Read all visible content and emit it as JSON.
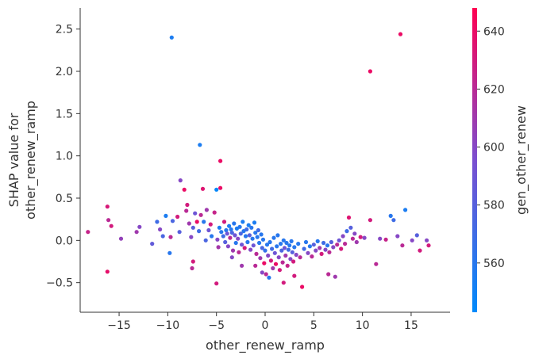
{
  "chart_data": {
    "type": "scatter",
    "xlabel": "other_renew_ramp",
    "ylabel_lines": [
      "SHAP value for",
      "other_renew_ramp"
    ],
    "colorbar_label": "gen_other_renew",
    "xlim": [
      -19,
      19
    ],
    "ylim": [
      -0.85,
      2.75
    ],
    "x_ticks": [
      -15,
      -10,
      -5,
      0,
      5,
      10,
      15
    ],
    "x_tick_labels": [
      "−15",
      "−10",
      "−5",
      "0",
      "5",
      "10",
      "15"
    ],
    "y_ticks": [
      -0.5,
      0.0,
      0.5,
      1.0,
      1.5,
      2.0,
      2.5
    ],
    "y_tick_labels": [
      "−0.5",
      "0.0",
      "0.5",
      "1.0",
      "1.5",
      "2.0",
      "2.5"
    ],
    "colorbar_range": [
      543,
      648
    ],
    "colorbar_ticks": [
      560,
      580,
      600,
      620,
      640
    ],
    "colorbar_tick_labels": [
      "560",
      "580",
      "600",
      "620",
      "640"
    ],
    "colors": {
      "low": "#008afb",
      "mid": "#7b4fd0",
      "high": "#ff0052"
    },
    "grid": false,
    "points": [
      [
        -18.2,
        0.1,
        625
      ],
      [
        -16.2,
        0.4,
        632
      ],
      [
        -16.1,
        0.24,
        620
      ],
      [
        -15.8,
        0.17,
        630
      ],
      [
        -16.2,
        -0.37,
        638
      ],
      [
        -14.8,
        0.02,
        605
      ],
      [
        -13.2,
        0.1,
        610
      ],
      [
        -12.9,
        0.16,
        600
      ],
      [
        -11.6,
        -0.04,
        585
      ],
      [
        -11.1,
        0.22,
        570
      ],
      [
        -10.8,
        0.13,
        600
      ],
      [
        -10.5,
        0.05,
        575
      ],
      [
        -10.2,
        0.29,
        555
      ],
      [
        -9.8,
        -0.15,
        560
      ],
      [
        -9.7,
        0.04,
        620
      ],
      [
        -9.5,
        0.23,
        575
      ],
      [
        -9.0,
        0.28,
        630
      ],
      [
        -8.8,
        0.1,
        580
      ],
      [
        -8.7,
        0.71,
        600
      ],
      [
        -8.3,
        0.6,
        640
      ],
      [
        -8.1,
        0.35,
        620
      ],
      [
        -8.0,
        0.42,
        630
      ],
      [
        -7.8,
        0.2,
        610
      ],
      [
        -7.6,
        0.04,
        600
      ],
      [
        -7.4,
        0.15,
        580
      ],
      [
        -7.2,
        0.32,
        590
      ],
      [
        -7.0,
        0.22,
        640
      ],
      [
        -6.8,
        0.11,
        570
      ],
      [
        -6.6,
        0.3,
        620
      ],
      [
        -6.4,
        0.61,
        635
      ],
      [
        -6.3,
        0.22,
        560
      ],
      [
        -6.1,
        0.0,
        575
      ],
      [
        -6.0,
        0.36,
        610
      ],
      [
        -5.8,
        0.12,
        590
      ],
      [
        -5.6,
        0.19,
        630
      ],
      [
        -5.5,
        0.05,
        560
      ],
      [
        -5.2,
        0.33,
        625
      ],
      [
        -5.0,
        0.6,
        545
      ],
      [
        -4.9,
        0.01,
        600
      ],
      [
        -4.8,
        -0.08,
        612
      ],
      [
        -4.7,
        0.15,
        555
      ],
      [
        -4.6,
        0.62,
        640
      ],
      [
        -4.5,
        0.1,
        560
      ],
      [
        -4.3,
        0.05,
        570
      ],
      [
        -4.2,
        0.22,
        630
      ],
      [
        -4.1,
        -0.02,
        580
      ],
      [
        -4.0,
        0.12,
        560
      ],
      [
        -3.9,
        0.08,
        590
      ],
      [
        -3.8,
        -0.07,
        600
      ],
      [
        -3.7,
        0.17,
        555
      ],
      [
        -3.6,
        0.03,
        620
      ],
      [
        -3.5,
        0.13,
        560
      ],
      [
        -3.4,
        0.09,
        575
      ],
      [
        -3.3,
        -0.12,
        610
      ],
      [
        -3.2,
        0.2,
        560
      ],
      [
        -3.1,
        0.06,
        590
      ],
      [
        -3.0,
        -0.03,
        560
      ],
      [
        -2.9,
        0.14,
        555
      ],
      [
        -2.8,
        0.02,
        600
      ],
      [
        -2.7,
        -0.14,
        620
      ],
      [
        -2.6,
        0.16,
        560
      ],
      [
        -2.5,
        0.08,
        575
      ],
      [
        -2.4,
        -0.05,
        590
      ],
      [
        -2.3,
        0.22,
        555
      ],
      [
        -2.2,
        0.11,
        560
      ],
      [
        -2.1,
        -0.09,
        630
      ],
      [
        -2.0,
        0.05,
        560
      ],
      [
        -1.9,
        0.13,
        570
      ],
      [
        -1.8,
        -0.02,
        560
      ],
      [
        -1.7,
        0.18,
        555
      ],
      [
        -1.6,
        0.06,
        580
      ],
      [
        -1.5,
        -0.11,
        600
      ],
      [
        -1.4,
        0.15,
        560
      ],
      [
        -1.3,
        0.02,
        560
      ],
      [
        -1.2,
        -0.06,
        590
      ],
      [
        -1.1,
        0.21,
        555
      ],
      [
        -1.0,
        0.09,
        560
      ],
      [
        -0.9,
        -0.16,
        620
      ],
      [
        -0.8,
        0.04,
        560
      ],
      [
        -0.7,
        0.12,
        570
      ],
      [
        -0.6,
        -0.03,
        560
      ],
      [
        -0.5,
        -0.21,
        610
      ],
      [
        -0.4,
        0.07,
        560
      ],
      [
        -0.3,
        -0.09,
        575
      ],
      [
        -0.2,
        0.01,
        560
      ],
      [
        -0.1,
        -0.27,
        640
      ],
      [
        0.0,
        -0.12,
        565
      ],
      [
        0.1,
        -0.4,
        620
      ],
      [
        0.2,
        -0.05,
        560
      ],
      [
        0.3,
        -0.18,
        600
      ],
      [
        0.4,
        -0.44,
        560
      ],
      [
        0.5,
        -0.02,
        560
      ],
      [
        0.6,
        -0.24,
        630
      ],
      [
        0.7,
        -0.1,
        570
      ],
      [
        0.8,
        -0.33,
        610
      ],
      [
        0.9,
        0.03,
        560
      ],
      [
        1.0,
        -0.15,
        590
      ],
      [
        1.1,
        -0.28,
        640
      ],
      [
        1.2,
        -0.07,
        560
      ],
      [
        1.3,
        0.06,
        560
      ],
      [
        1.4,
        -0.2,
        600
      ],
      [
        1.5,
        -0.35,
        630
      ],
      [
        1.6,
        -0.04,
        560
      ],
      [
        1.7,
        -0.12,
        575
      ],
      [
        1.8,
        -0.26,
        620
      ],
      [
        1.9,
        0.0,
        560
      ],
      [
        2.0,
        -0.09,
        590
      ],
      [
        2.1,
        -0.18,
        610
      ],
      [
        2.2,
        -0.03,
        560
      ],
      [
        2.3,
        -0.3,
        625
      ],
      [
        2.4,
        -0.11,
        570
      ],
      [
        2.5,
        -0.06,
        560
      ],
      [
        2.6,
        -0.22,
        600
      ],
      [
        2.7,
        -0.01,
        560
      ],
      [
        2.8,
        -0.14,
        580
      ],
      [
        2.9,
        -0.25,
        630
      ],
      [
        3.0,
        -0.08,
        560
      ],
      [
        3.2,
        -0.17,
        600
      ],
      [
        3.4,
        -0.04,
        560
      ],
      [
        3.6,
        -0.2,
        620
      ],
      [
        3.8,
        -0.55,
        640
      ],
      [
        4.0,
        -0.1,
        570
      ],
      [
        4.2,
        -0.02,
        560
      ],
      [
        4.4,
        -0.15,
        600
      ],
      [
        4.6,
        -0.07,
        560
      ],
      [
        4.8,
        -0.19,
        620
      ],
      [
        5.0,
        -0.05,
        580
      ],
      [
        5.2,
        -0.12,
        600
      ],
      [
        5.4,
        -0.01,
        560
      ],
      [
        5.6,
        -0.09,
        610
      ],
      [
        5.8,
        -0.16,
        630
      ],
      [
        6.0,
        -0.03,
        570
      ],
      [
        6.2,
        -0.11,
        600
      ],
      [
        6.4,
        -0.06,
        560
      ],
      [
        6.6,
        -0.14,
        620
      ],
      [
        6.8,
        -0.02,
        580
      ],
      [
        7.0,
        -0.08,
        600
      ],
      [
        7.2,
        -0.43,
        610
      ],
      [
        7.4,
        -0.05,
        620
      ],
      [
        7.6,
        0.0,
        590
      ],
      [
        7.8,
        -0.1,
        630
      ],
      [
        8.0,
        0.05,
        600
      ],
      [
        8.2,
        -0.04,
        620
      ],
      [
        8.4,
        0.11,
        570
      ],
      [
        8.6,
        0.27,
        635
      ],
      [
        8.8,
        0.15,
        580
      ],
      [
        9.0,
        0.02,
        620
      ],
      [
        9.2,
        0.08,
        600
      ],
      [
        9.4,
        -0.02,
        610
      ],
      [
        9.8,
        0.04,
        630
      ],
      [
        10.2,
        0.03,
        600
      ],
      [
        10.8,
        0.24,
        630
      ],
      [
        11.4,
        -0.28,
        620
      ],
      [
        11.8,
        0.02,
        600
      ],
      [
        12.4,
        0.01,
        625
      ],
      [
        12.9,
        0.29,
        560
      ],
      [
        13.2,
        0.24,
        570
      ],
      [
        13.6,
        0.05,
        600
      ],
      [
        14.1,
        -0.06,
        620
      ],
      [
        14.4,
        0.36,
        555
      ],
      [
        15.1,
        0.0,
        600
      ],
      [
        15.6,
        0.06,
        580
      ],
      [
        15.9,
        -0.12,
        630
      ],
      [
        16.6,
        0.0,
        600
      ],
      [
        16.8,
        -0.06,
        630
      ],
      [
        -9.6,
        2.4,
        555
      ],
      [
        -6.7,
        1.13,
        555
      ],
      [
        -4.6,
        0.94,
        640
      ],
      [
        10.8,
        2.0,
        640
      ],
      [
        13.9,
        2.44,
        640
      ],
      [
        -5.0,
        -0.51,
        630
      ],
      [
        -7.4,
        -0.25,
        630
      ],
      [
        -7.5,
        -0.33,
        620
      ],
      [
        -0.3,
        -0.38,
        600
      ],
      [
        1.9,
        -0.5,
        630
      ],
      [
        6.5,
        -0.4,
        620
      ],
      [
        -2.4,
        -0.3,
        610
      ],
      [
        -3.4,
        -0.2,
        600
      ],
      [
        -1.0,
        -0.3,
        620
      ],
      [
        3.0,
        -0.42,
        630
      ]
    ]
  }
}
